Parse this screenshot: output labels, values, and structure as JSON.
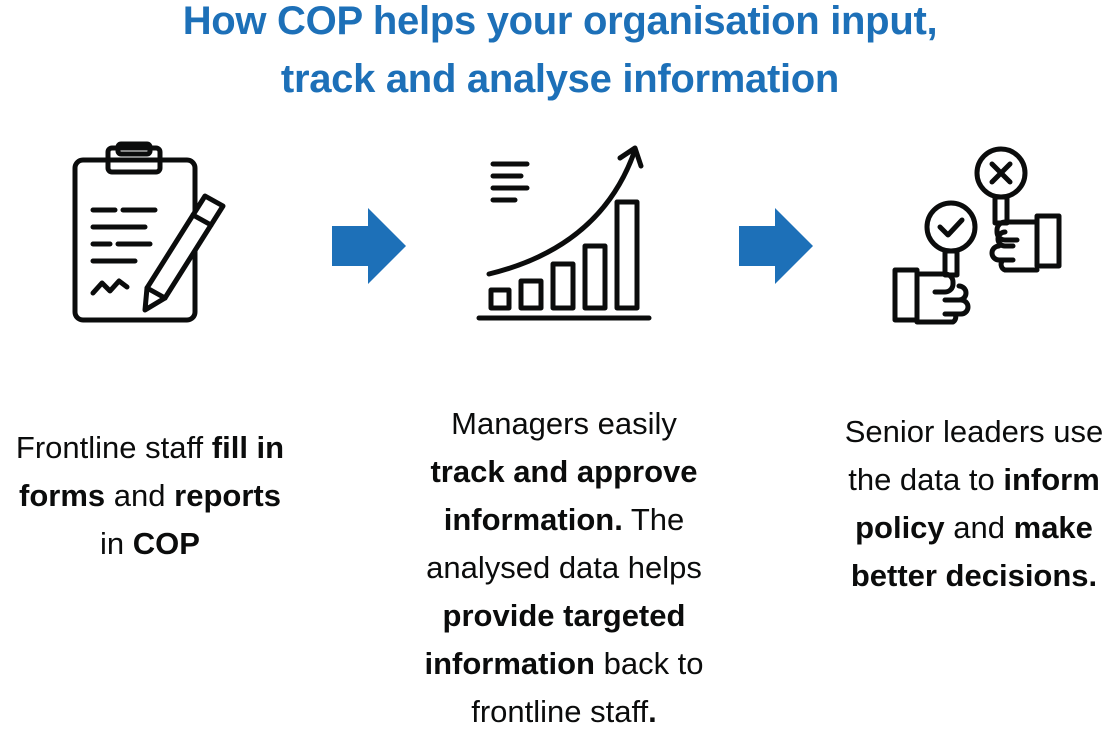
{
  "title": {
    "line1": "How COP helps your organisation input,",
    "line2": "track and analyse information"
  },
  "colors": {
    "title": "#1d70b8",
    "arrow": "#1d70b8",
    "icon_stroke": "#0b0c0c",
    "text": "#0b0c0c"
  },
  "steps": [
    {
      "icon": "clipboard-pencil-icon",
      "caption": {
        "t1": "Frontline staff ",
        "b1": "fill in",
        "b2": "forms",
        "t2": " and ",
        "b3": "reports",
        "t3": "in ",
        "b4": "COP"
      }
    },
    {
      "icon": "growth-chart-icon",
      "caption": {
        "t1": "Managers easily",
        "b1": "track and approve",
        "b2": "information.",
        "t2": " The",
        "t3": "analysed data helps",
        "b3": "provide targeted",
        "b4": "information",
        "t4": " back to",
        "t5": "frontline staff",
        "b5": "."
      }
    },
    {
      "icon": "decision-paddles-icon",
      "caption": {
        "t1": "Senior leaders use",
        "t2": "the data to ",
        "b1": "inform",
        "b2": "policy",
        "t3": " and ",
        "b3": "make",
        "b4": "better decisions."
      }
    }
  ],
  "connectors": [
    "right-arrow-icon",
    "right-arrow-icon"
  ]
}
